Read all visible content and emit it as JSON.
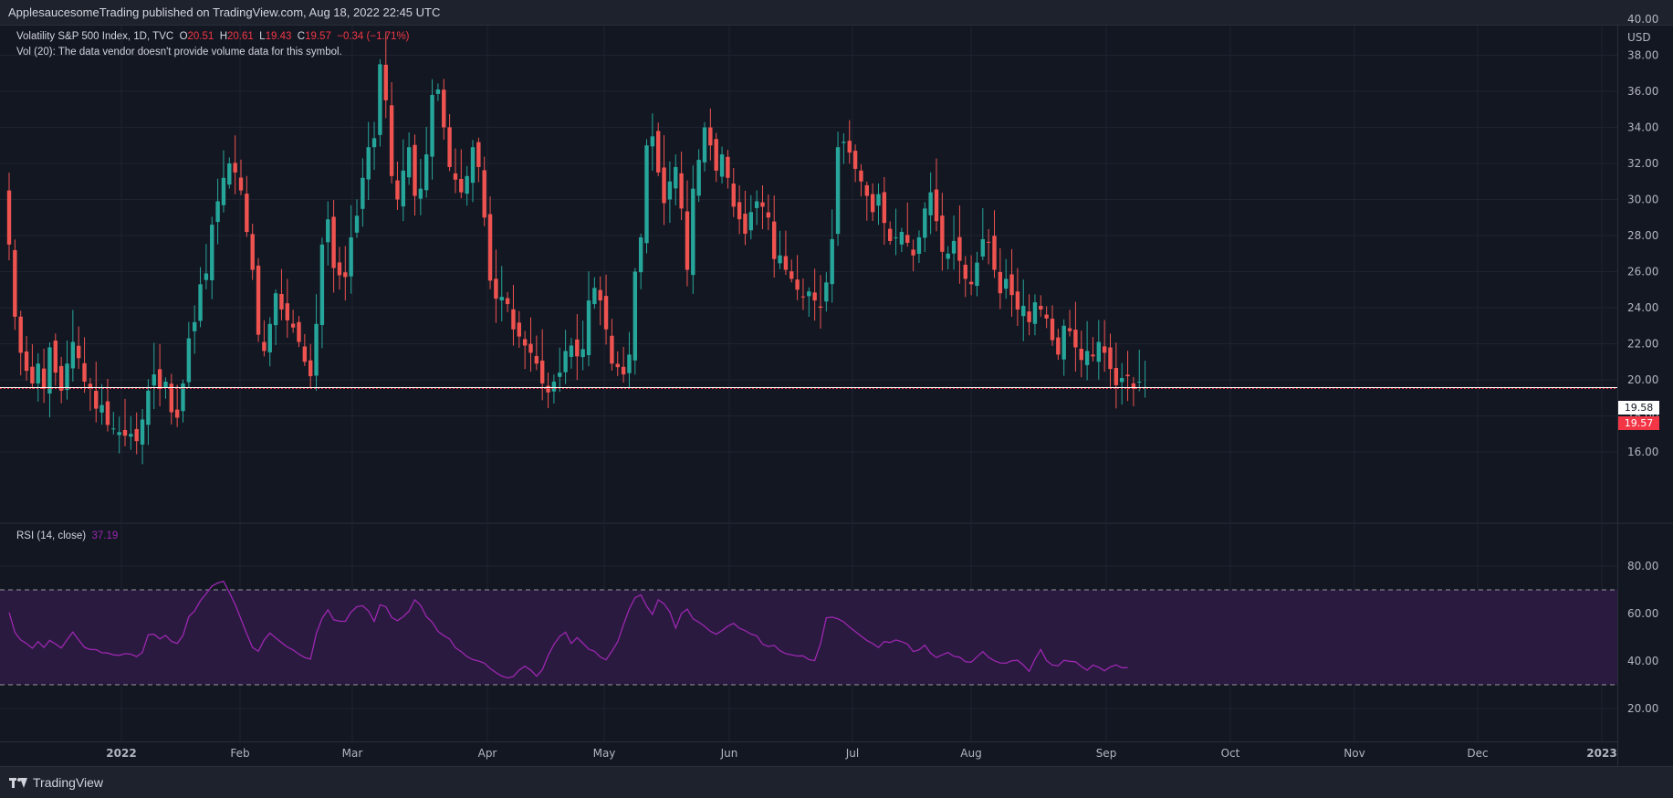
{
  "header": {
    "published": "ApplesaucesomeTrading published on TradingView.com, Aug 18, 2022 22:45 UTC"
  },
  "legend": {
    "symbol": "Volatility S&P 500 Index, 1D, TVC",
    "o_label": "O",
    "o_value": "20.51",
    "h_label": "H",
    "h_value": "20.61",
    "l_label": "L",
    "l_value": "19.43",
    "c_label": "C",
    "c_value": "19.57",
    "change": "−0.34 (−1.71%)",
    "vol_note": "Vol (20): The data vendor doesn't provide volume data for this symbol."
  },
  "rsi_legend": {
    "label": "RSI (14, close)",
    "value": "37.19"
  },
  "price_axis": {
    "currency": "USD"
  },
  "tags": {
    "prev": "19.58",
    "last": "19.57"
  },
  "footer": {
    "brand": "TradingView"
  },
  "colors": {
    "up": "#26a69a",
    "down": "#ef5350",
    "rsi": "#9c27b0",
    "rsi_band": "#2d1b42"
  },
  "chart_data": [
    {
      "type": "candlestick",
      "title": "Volatility S&P 500 Index, 1D, TVC",
      "x_labels": [
        "2022",
        "Feb",
        "Mar",
        "Apr",
        "May",
        "Jun",
        "Jul",
        "Aug",
        "Sep",
        "Oct",
        "Nov",
        "Dec",
        "2023"
      ],
      "y_ticks": [
        16,
        18,
        20,
        22,
        24,
        26,
        28,
        30,
        32,
        34,
        36,
        38,
        40
      ],
      "ylim": [
        14.2,
        41.3
      ],
      "horizontal_line": 19.57,
      "close": [
        27.5,
        23.5,
        21.5,
        20.5,
        19.8,
        20.9,
        19.5,
        21.8,
        20.4,
        19.4,
        20.9,
        22.1,
        21.2,
        19.9,
        19.6,
        18.4,
        18.6,
        17.5,
        17.3,
        17.1,
        16.9,
        17.0,
        16.6,
        17.8,
        19.4,
        20.3,
        19.5,
        19.9,
        18.2,
        17.9,
        19.8,
        22.3,
        23.2,
        25.3,
        25.9,
        28.6,
        29.9,
        31.2,
        32.0,
        31.5,
        30.5,
        28.2,
        26.1,
        22.5,
        21.6,
        23.1,
        24.8,
        23.9,
        23.3,
        22.9,
        22.1,
        21.0,
        20.2,
        23.1,
        27.5,
        28.9,
        26.2,
        25.8,
        25.7,
        27.9,
        29.1,
        31.2,
        32.9,
        33.4,
        37.5,
        35.5,
        31.3,
        30.0,
        31.6,
        32.9,
        30.2,
        30.6,
        32.5,
        35.8,
        36.1,
        34.0,
        31.8,
        31.1,
        30.4,
        31.3,
        32.9,
        31.8,
        29.0,
        25.5,
        24.5,
        24.6,
        24.2,
        22.8,
        22.4,
        21.9,
        21.5,
        20.9,
        19.8,
        19.3,
        19.9,
        20.4,
        21.6,
        21.9,
        21.3,
        21.7,
        24.4,
        25.1,
        24.4,
        22.8,
        20.9,
        20.7,
        20.3,
        21.4,
        26.0,
        27.9,
        33.0,
        33.5,
        31.5,
        29.8,
        31.0,
        31.8,
        29.5,
        26.1,
        30.6,
        32.2,
        34.0,
        33.0,
        31.6,
        32.5,
        31.2,
        29.6,
        28.9,
        28.1,
        29.3,
        29.9,
        29.6,
        29.0,
        26.7,
        26.9,
        26.1,
        25.6,
        25.0,
        24.6,
        24.9,
        24.4,
        24.0,
        25.4,
        27.8,
        32.9,
        33.2,
        32.6,
        31.7,
        31.0,
        30.2,
        29.3,
        30.3,
        28.7,
        27.7,
        27.9,
        28.2,
        27.6,
        26.9,
        27.9,
        29.5,
        30.4,
        28.8,
        27.1,
        27.0,
        27.7,
        26.6,
        25.6,
        25.3,
        26.5,
        27.8,
        27.6,
        26.1,
        24.8,
        25.6,
        24.7,
        23.9,
        24.1,
        23.2,
        24.3,
        23.9,
        23.4,
        22.2,
        21.4,
        23.0,
        22.7,
        21.8,
        21.1,
        21.6,
        21.3,
        22.1,
        21.5,
        20.6,
        19.7,
        20.1,
        20.2,
        19.5,
        19.9,
        19.6
      ]
    },
    {
      "type": "line",
      "title": "RSI (14, close)",
      "y_ticks": [
        20,
        40,
        60,
        80
      ],
      "ylim": [
        12.2,
        91.7
      ],
      "bands": [
        30,
        70
      ],
      "values": [
        60.5,
        52.0,
        48.9,
        47.4,
        45.4,
        48.2,
        45.7,
        48.7,
        47.2,
        45.5,
        49.0,
        52.2,
        48.9,
        45.8,
        44.9,
        44.8,
        43.5,
        43.4,
        42.6,
        42.4,
        43.1,
        42.9,
        41.9,
        43.6,
        51.1,
        51.3,
        49.3,
        50.8,
        48.3,
        47.4,
        50.8,
        58.7,
        61.1,
        65.4,
        68.3,
        71.6,
        72.9,
        73.6,
        68.9,
        63.9,
        57.7,
        51.5,
        45.7,
        44.1,
        48.9,
        51.8,
        49.7,
        47.8,
        45.9,
        44.7,
        42.9,
        41.5,
        40.8,
        51.5,
        58.0,
        61.6,
        57.4,
        56.8,
        56.7,
        60.6,
        62.9,
        63.3,
        61.1,
        56.7,
        63.7,
        62.9,
        58.4,
        57.0,
        58.7,
        61.0,
        65.8,
        63.5,
        58.7,
        56.4,
        52.5,
        50.7,
        49.3,
        45.6,
        44.0,
        41.9,
        40.6,
        40.0,
        39.1,
        36.9,
        35.1,
        33.7,
        32.9,
        33.5,
        36.2,
        37.8,
        36.2,
        33.6,
        36.3,
        42.3,
        47.0,
        50.4,
        52.1,
        47.4,
        49.9,
        47.5,
        45.0,
        44.1,
        41.7,
        40.5,
        44.1,
        48.1,
        55.3,
        61.9,
        66.7,
        67.9,
        63.1,
        59.6,
        65.8,
        64.1,
        60.7,
        53.9,
        60.0,
        61.9,
        57.8,
        56.4,
        54.6,
        52.5,
        51.3,
        52.8,
        54.7,
        55.9,
        53.8,
        52.8,
        51.4,
        50.6,
        47.1,
        46.1,
        46.6,
        44.4,
        43.1,
        42.6,
        42.1,
        42.2,
        40.6,
        40.2,
        47.3,
        58.2,
        58.5,
        57.8,
        56.5,
        54.3,
        52.4,
        50.5,
        48.7,
        47.4,
        45.7,
        48.2,
        47.8,
        48.9,
        48.2,
        47.1,
        44.0,
        44.7,
        46.7,
        43.3,
        41.5,
        42.6,
        43.6,
        42.0,
        41.6,
        39.7,
        39.5,
        41.8,
        44.0,
        41.6,
        40.1,
        39.2,
        39.1,
        40.1,
        40.3,
        38.3,
        35.6,
        40.8,
        44.9,
        40.2,
        38.3,
        38.0,
        40.3,
        39.9,
        39.7,
        37.7,
        36.1,
        38.3,
        37.4,
        35.9,
        37.5,
        38.4,
        37.2,
        37.19
      ]
    }
  ]
}
